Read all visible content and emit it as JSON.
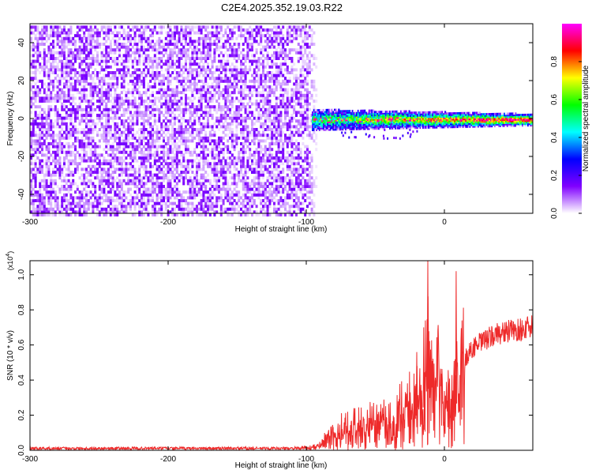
{
  "title": "C2E4.2025.352.19.03.R22",
  "chart_data": [
    {
      "type": "heatmap",
      "xlabel": "Height of straight line (km)",
      "ylabel": "Frequency (Hz)",
      "xlim": [
        -300,
        64
      ],
      "ylim": [
        -50,
        50
      ],
      "xticks": [
        "-300",
        "-200",
        "-100",
        "0"
      ],
      "xtick_values": [
        -300,
        -200,
        -100,
        0
      ],
      "yticks": [
        "-40",
        "-20",
        "0",
        "20",
        "40"
      ],
      "ytick_values": [
        -40,
        -20,
        0,
        20,
        40
      ],
      "grid": false,
      "colorbar": {
        "label": "Normalized spectral amplitude",
        "range": [
          0,
          1
        ],
        "ticks": [
          "0.0",
          "0.2",
          "0.4",
          "0.6",
          "0.8"
        ],
        "tick_values": [
          0.0,
          0.2,
          0.4,
          0.6,
          0.8
        ],
        "colors": [
          "#ffffff",
          "#8000ff",
          "#0000ff",
          "#00ffff",
          "#00ff00",
          "#ffff00",
          "#ff0000",
          "#ff00ff"
        ]
      },
      "regions": {
        "noise": {
          "x": [
            -300,
            -89
          ],
          "y": [
            -50,
            50
          ],
          "typical_amplitude": [
            0.0,
            0.15
          ]
        },
        "signal_band": {
          "x": [
            -96,
            64
          ],
          "center_y": 0,
          "typical_amplitude": [
            0.1,
            1.0
          ]
        }
      }
    },
    {
      "type": "line",
      "xlabel": "Height of straight line (km)",
      "ylabel": "SNR (10 * v/v)",
      "y_multiplier": "(x10",
      "y_multiplier_exp": "4",
      "y_multiplier_close": ")",
      "xlim": [
        -300,
        64
      ],
      "ylim": [
        0,
        1.08
      ],
      "xticks": [
        "-300",
        "-200",
        "-100",
        "0"
      ],
      "xtick_values": [
        -300,
        -200,
        -100,
        0
      ],
      "yticks": [
        "0.0",
        "0.2",
        "0.4",
        "0.6",
        "0.8",
        "1.0"
      ],
      "ytick_values": [
        0.0,
        0.2,
        0.4,
        0.6,
        0.8,
        1.0
      ],
      "grid": false,
      "color": "#ee2a2a",
      "envelope": {
        "x": [
          -300,
          -105,
          -95,
          -90,
          -85,
          -80,
          -70,
          -60,
          -50,
          -40,
          -30,
          -25,
          -20,
          -16,
          -13,
          -12,
          -10,
          -7,
          -5,
          0,
          5,
          8,
          10,
          15,
          20,
          30,
          40,
          50,
          64
        ],
        "y": [
          0.01,
          0.01,
          0.02,
          0.04,
          0.08,
          0.12,
          0.15,
          0.17,
          0.18,
          0.22,
          0.25,
          0.3,
          0.33,
          0.35,
          0.52,
          0.7,
          0.42,
          0.45,
          0.48,
          0.38,
          0.3,
          0.55,
          0.5,
          0.52,
          0.58,
          0.63,
          0.67,
          0.68,
          0.7
        ]
      },
      "spikes": [
        {
          "x": -12,
          "y": 1.08
        },
        {
          "x": 8.5,
          "y": 1.02
        },
        {
          "x": -15,
          "y": 0.7
        },
        {
          "x": -20,
          "y": 0.56
        }
      ]
    }
  ]
}
